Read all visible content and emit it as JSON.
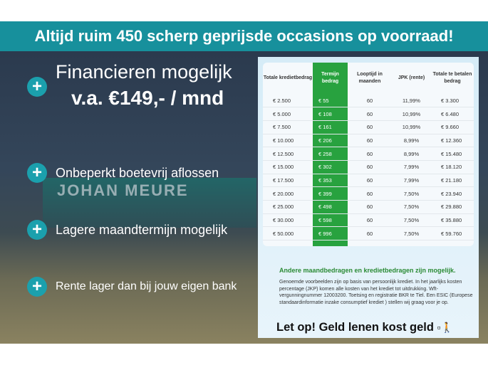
{
  "banner": {
    "title": "Altijd ruim 450 scherp geprijsde occasions op voorraad!"
  },
  "colors": {
    "banner": "#17909c",
    "accent_green": "#28a23f",
    "plus": "#1ba0ad"
  },
  "hero": {
    "line1": "Financieren mogelijk",
    "line2": "v.a. €149,- / mnd"
  },
  "background_sign": "JOHAN MEURE",
  "features": [
    {
      "icon": "plus-icon",
      "label": "Onbeperkt boetevrij aflossen"
    },
    {
      "icon": "plus-icon",
      "label": "Lagere maandtermijn mogelijk"
    },
    {
      "icon": "plus-icon",
      "label": "Rente lager dan bij jouw eigen bank"
    }
  ],
  "table": {
    "headers": [
      "Totale kredietbedrag",
      "Termijn bedrag",
      "Looptijd in maanden",
      "JPK (rente)",
      "Totale te betalen bedrag"
    ],
    "rows": [
      [
        "€ 2.500",
        "€ 55",
        "60",
        "11,99%",
        "€ 3.300"
      ],
      [
        "€ 5.000",
        "€ 108",
        "60",
        "10,99%",
        "€ 6.480"
      ],
      [
        "€ 7.500",
        "€ 161",
        "60",
        "10,99%",
        "€ 9.660"
      ],
      [
        "€ 10.000",
        "€ 206",
        "60",
        "8,99%",
        "€ 12.360"
      ],
      [
        "€ 12.500",
        "€ 258",
        "60",
        "8,99%",
        "€ 15.480"
      ],
      [
        "€ 15.000",
        "€ 302",
        "60",
        "7,99%",
        "€ 18.120"
      ],
      [
        "€ 17.500",
        "€ 353",
        "60",
        "7,99%",
        "€ 21.180"
      ],
      [
        "€ 20.000",
        "€ 399",
        "60",
        "7,50%",
        "€ 23.940"
      ],
      [
        "€ 25.000",
        "€ 498",
        "60",
        "7,50%",
        "€ 29.880"
      ],
      [
        "€ 30.000",
        "€ 598",
        "60",
        "7,50%",
        "€ 35.880"
      ],
      [
        "€ 50.000",
        "€ 996",
        "60",
        "7,50%",
        "€ 59.760"
      ]
    ]
  },
  "note": {
    "subtitle": "Andere maandbedragen en kredietbedragen zijn mogelijk.",
    "fine_print": "Genoemde voorbeelden zijn op basis van persoonlijk krediet. In het jaarlijks kosten percentage (JKP) komen alle kosten van het krediet tot uitdrukking. Wft-vergunningnummer 12003200. Toetsing en registratie BKR te Tiel. Een ESIC (Europese standaardinformatie inzake consumptief krediet ) stellen wij graag voor je op.",
    "warning": "Let op! Geld lenen kost geld",
    "warning_icon": "walking-man-with-weight-icon"
  }
}
